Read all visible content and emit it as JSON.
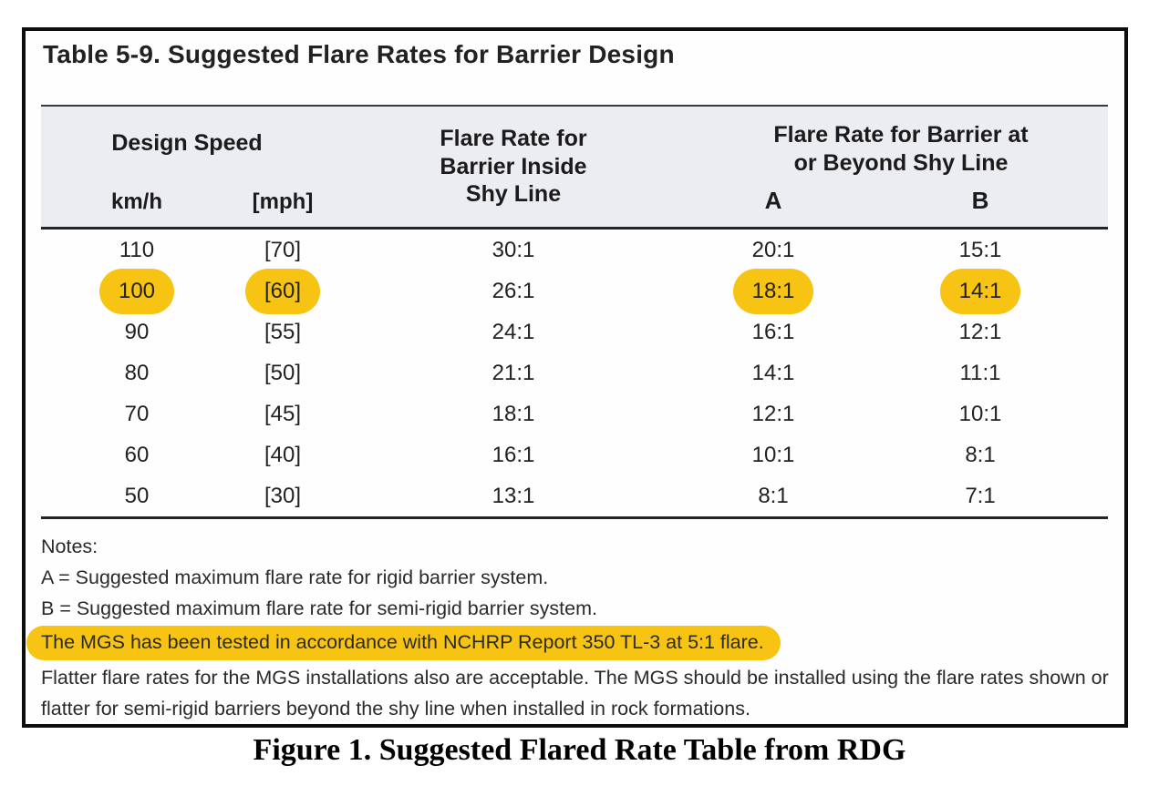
{
  "figure": {
    "table_title": "Table 5-9. Suggested Flare Rates for Barrier Design",
    "header": {
      "design_speed": "Design Speed",
      "kmh": "km/h",
      "mph": "[mph]",
      "inside_shy": "Flare Rate for\nBarrier Inside\nShy Line",
      "beyond_shy": "Flare Rate for Barrier at\nor Beyond Shy Line",
      "col_a": "A",
      "col_b": "B"
    },
    "rows": [
      {
        "kmh": "110",
        "mph": "[70]",
        "inside": "30:1",
        "a": "20:1",
        "b": "15:1",
        "highlight": []
      },
      {
        "kmh": "100",
        "mph": "[60]",
        "inside": "26:1",
        "a": "18:1",
        "b": "14:1",
        "highlight": [
          "kmh",
          "mph",
          "a",
          "b"
        ]
      },
      {
        "kmh": "90",
        "mph": "[55]",
        "inside": "24:1",
        "a": "16:1",
        "b": "12:1",
        "highlight": []
      },
      {
        "kmh": "80",
        "mph": "[50]",
        "inside": "21:1",
        "a": "14:1",
        "b": "11:1",
        "highlight": []
      },
      {
        "kmh": "70",
        "mph": "[45]",
        "inside": "18:1",
        "a": "12:1",
        "b": "10:1",
        "highlight": []
      },
      {
        "kmh": "60",
        "mph": "[40]",
        "inside": "16:1",
        "a": "10:1",
        "b": "8:1",
        "highlight": []
      },
      {
        "kmh": "50",
        "mph": "[30]",
        "inside": "13:1",
        "a": "8:1",
        "b": "7:1",
        "highlight": []
      }
    ],
    "notes": {
      "label": "Notes:",
      "note_a": "A = Suggested maximum flare rate for rigid barrier system.",
      "note_b": "B = Suggested maximum flare rate for semi-rigid barrier system.",
      "note_highlighted": "The MGS has been tested in accordance with NCHRP Report 350 TL-3 at 5:1 flare.",
      "note_flatter": "Flatter flare rates for the MGS installations also are acceptable. The MGS should be installed using the flare rates shown or flatter for semi-rigid barriers beyond the shy line when installed in rock formations."
    },
    "caption": "Figure 1. Suggested Flared Rate Table from RDG",
    "colors": {
      "highlight": "#F7C414",
      "header_background": "#ECEDF2",
      "frame_border": "#0E0E0E"
    }
  }
}
